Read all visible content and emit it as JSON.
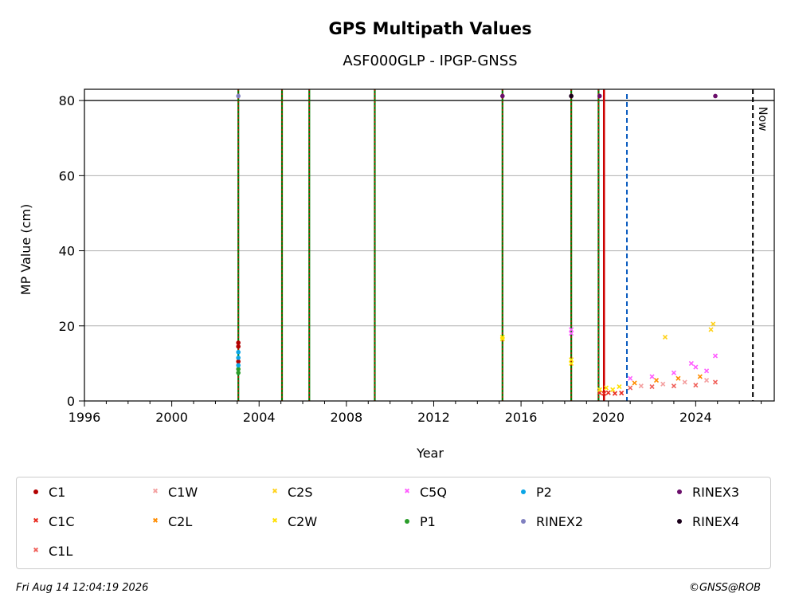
{
  "chart_data": {
    "type": "scatter",
    "title": "GPS Multipath Values",
    "subtitle": "ASF000GLP - IPGP-GNSS",
    "xlabel": "Year",
    "ylabel": "MP Value (cm)",
    "xlim": [
      1996.0,
      2027.6
    ],
    "ylim": [
      0,
      83
    ],
    "x_ticks": [
      1996,
      2000,
      2004,
      2008,
      2012,
      2016,
      2020,
      2024
    ],
    "y_ticks": [
      0,
      20,
      40,
      60,
      80
    ],
    "grid": "y",
    "reference_line_y": 80,
    "now_label": "Now",
    "now_x": 2026.62,
    "vlines_green_red_dotted": [
      2003.05,
      2005.05,
      2006.3,
      2009.3,
      2015.15,
      2018.3,
      2019.55
    ],
    "vline_red_solid": 2019.8,
    "vline_blue_dashed": 2020.85,
    "legend_placement": "bottom",
    "series": [
      {
        "name": "C1",
        "marker": "dot",
        "color": "#b30000",
        "points": [
          [
            2003.05,
            15.5
          ],
          [
            2003.05,
            14.5
          ],
          [
            2003.05,
            10.5
          ]
        ]
      },
      {
        "name": "C1C",
        "marker": "x",
        "color": "#e8271c",
        "points": [
          [
            2019.6,
            2.2
          ],
          [
            2019.8,
            2.0
          ],
          [
            2020.0,
            2.2
          ],
          [
            2020.3,
            2.0
          ],
          [
            2020.6,
            2.1
          ]
        ]
      },
      {
        "name": "C1L",
        "marker": "x",
        "color": "#f0605a",
        "points": [
          [
            2021.0,
            3.5
          ],
          [
            2022.0,
            3.8
          ],
          [
            2023.0,
            4.0
          ],
          [
            2024.0,
            4.2
          ],
          [
            2024.9,
            5.0
          ]
        ]
      },
      {
        "name": "C1W",
        "marker": "x",
        "color": "#f4a0a0",
        "points": [
          [
            2021.5,
            4.0
          ],
          [
            2022.5,
            4.5
          ],
          [
            2023.5,
            5.0
          ],
          [
            2024.5,
            5.5
          ]
        ]
      },
      {
        "name": "C2L",
        "marker": "x",
        "color": "#ff8c00",
        "points": [
          [
            2021.2,
            4.8
          ],
          [
            2022.2,
            5.5
          ],
          [
            2023.2,
            6.0
          ],
          [
            2024.2,
            6.5
          ]
        ]
      },
      {
        "name": "C2S",
        "marker": "x",
        "color": "#ffd21a",
        "points": [
          [
            2022.6,
            17.0
          ],
          [
            2024.8,
            20.5
          ],
          [
            2024.7,
            19.0
          ]
        ]
      },
      {
        "name": "C2W",
        "marker": "x",
        "color": "#ffe000",
        "points": [
          [
            2015.15,
            17.0
          ],
          [
            2015.15,
            16.5
          ],
          [
            2018.3,
            11.0
          ],
          [
            2018.3,
            10.0
          ],
          [
            2019.6,
            3.0
          ],
          [
            2019.9,
            3.5
          ],
          [
            2020.2,
            3.0
          ],
          [
            2020.5,
            3.8
          ]
        ]
      },
      {
        "name": "C5Q",
        "marker": "x",
        "color": "#ff5cff",
        "points": [
          [
            2018.3,
            19.0
          ],
          [
            2018.3,
            18.0
          ],
          [
            2021.0,
            6.0
          ],
          [
            2022.0,
            6.5
          ],
          [
            2023.0,
            7.5
          ],
          [
            2023.8,
            10.0
          ],
          [
            2024.0,
            9.0
          ],
          [
            2024.5,
            8.0
          ],
          [
            2024.9,
            12.0
          ]
        ]
      },
      {
        "name": "P1",
        "marker": "dot",
        "color": "#2a9d2a",
        "points": [
          [
            2003.05,
            7.5
          ],
          [
            2003.05,
            8.5
          ]
        ]
      },
      {
        "name": "P2",
        "marker": "dot",
        "color": "#0aa5e6",
        "points": [
          [
            2003.05,
            9.5
          ],
          [
            2003.05,
            11.5
          ],
          [
            2003.05,
            13.0
          ]
        ]
      },
      {
        "name": "RINEX2",
        "marker": "dot",
        "color": "#8080c0",
        "points": [
          [
            2003.05,
            81.2
          ]
        ]
      },
      {
        "name": "RINEX3",
        "marker": "dot",
        "color": "#6b0f6b",
        "points": [
          [
            2015.15,
            81.2
          ],
          [
            2018.3,
            81.2
          ],
          [
            2019.6,
            81.2
          ],
          [
            2024.9,
            81.2
          ]
        ]
      },
      {
        "name": "RINEX4",
        "marker": "dot",
        "color": "#1a001a",
        "points": [
          [
            2018.3,
            81.2
          ]
        ]
      }
    ]
  },
  "footer": {
    "timestamp": "Fri Aug 14 12:04:19 2026",
    "credit": "©GNSS@ROB"
  }
}
